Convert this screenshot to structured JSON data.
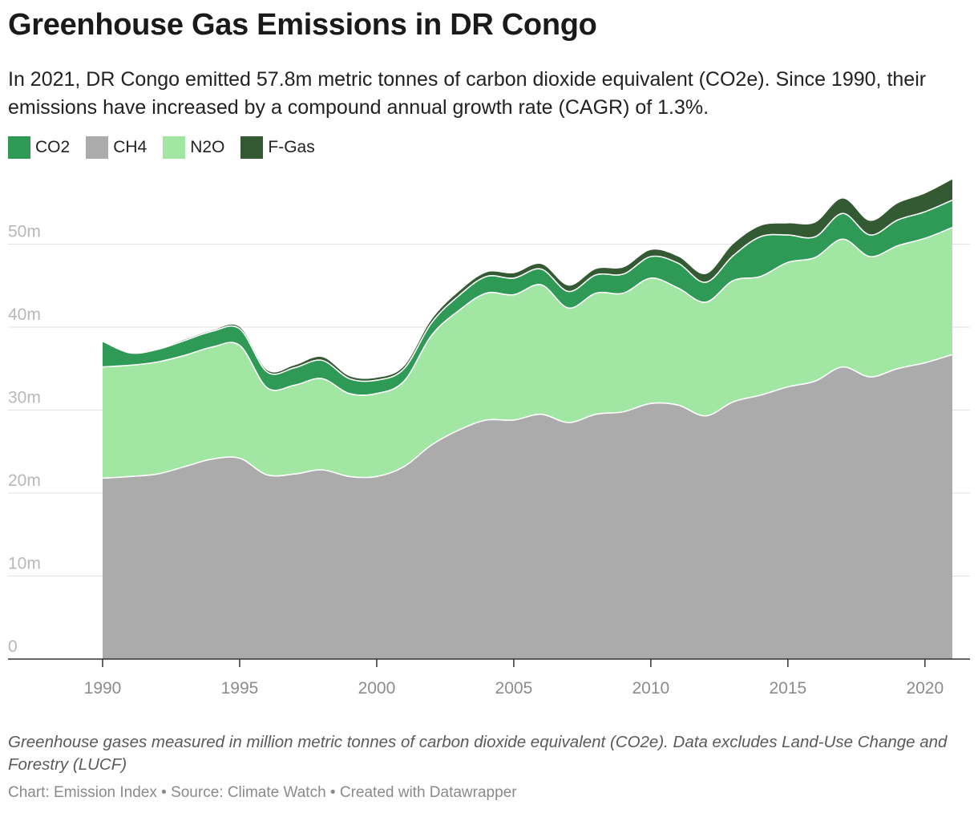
{
  "title": "Greenhouse Gas Emissions in DR Congo",
  "subtitle": "In 2021, DR Congo emitted 57.8m metric tonnes of carbon dioxide equivalent (CO2e). Since 1990, their emissions have increased by a compound annual growth rate (CAGR) of 1.3%.",
  "legend": [
    {
      "label": "CO2",
      "color": "#2e9a55"
    },
    {
      "label": "CH4",
      "color": "#ababab"
    },
    {
      "label": "N2O",
      "color": "#a1e6a3"
    },
    {
      "label": "F-Gas",
      "color": "#345a33"
    }
  ],
  "notes": "Greenhouse gases measured in million metric tonnes of carbon dioxide equivalent (CO2e). Data excludes Land-Use Change and Forestry (LUCF)",
  "source": "Chart: Emission Index • Source: Climate Watch • Created with Datawrapper",
  "chart_data": {
    "type": "area",
    "stacked": true,
    "x": [
      1990,
      1991,
      1992,
      1993,
      1994,
      1995,
      1996,
      1997,
      1998,
      1999,
      2000,
      2001,
      2002,
      2003,
      2004,
      2005,
      2006,
      2007,
      2008,
      2009,
      2010,
      2011,
      2012,
      2013,
      2014,
      2015,
      2016,
      2017,
      2018,
      2019,
      2020,
      2021
    ],
    "series": [
      {
        "name": "CH4",
        "color": "#ababab",
        "values": [
          21.8,
          22.0,
          22.3,
          23.2,
          24.1,
          24.2,
          22.2,
          22.3,
          22.8,
          22.0,
          22.0,
          23.2,
          25.8,
          27.6,
          28.8,
          28.8,
          29.5,
          28.5,
          29.5,
          29.8,
          30.8,
          30.6,
          29.3,
          31.0,
          31.8,
          32.8,
          33.5,
          35.2,
          34.0,
          35.0,
          35.7,
          36.7
        ]
      },
      {
        "name": "N2O",
        "color": "#a1e6a3",
        "values": [
          13.4,
          13.4,
          13.5,
          13.4,
          13.5,
          13.6,
          10.5,
          10.7,
          11.0,
          10.0,
          10.0,
          10.3,
          13.2,
          14.4,
          15.3,
          15.1,
          15.6,
          13.8,
          14.6,
          14.3,
          15.1,
          14.1,
          13.7,
          14.6,
          14.3,
          15.0,
          14.9,
          15.4,
          14.5,
          14.8,
          15.0,
          15.3
        ]
      },
      {
        "name": "CO2",
        "color": "#2e9a55",
        "values": [
          3.1,
          1.5,
          1.5,
          1.8,
          1.9,
          2.0,
          1.9,
          2.1,
          2.2,
          1.8,
          1.6,
          1.5,
          1.5,
          1.8,
          2.0,
          2.0,
          1.9,
          2.0,
          2.2,
          2.3,
          2.6,
          3.0,
          2.4,
          3.0,
          4.8,
          3.3,
          2.5,
          3.1,
          2.6,
          3.1,
          3.2,
          3.3
        ]
      },
      {
        "name": "F-Gas",
        "color": "#345a33",
        "values": [
          0.05,
          0.05,
          0.05,
          0.1,
          0.1,
          0.2,
          0.2,
          0.3,
          0.4,
          0.3,
          0.3,
          0.3,
          0.4,
          0.5,
          0.5,
          0.6,
          0.6,
          0.7,
          0.7,
          0.8,
          0.8,
          0.8,
          1.0,
          1.4,
          1.3,
          1.4,
          1.7,
          1.8,
          1.7,
          2.0,
          2.2,
          2.5
        ]
      }
    ],
    "ylim": [
      0,
      60
    ],
    "y_ticks": [
      0,
      10,
      20,
      30,
      40,
      50
    ],
    "y_tick_labels": [
      "0",
      "10m",
      "20m",
      "30m",
      "40m",
      "50m"
    ],
    "x_ticks": [
      1990,
      1995,
      2000,
      2005,
      2010,
      2015,
      2020
    ],
    "x_tick_labels": [
      "1990",
      "1995",
      "2000",
      "2005",
      "2010",
      "2015",
      "2020"
    ],
    "grid": true,
    "legend_position": "top-left"
  }
}
